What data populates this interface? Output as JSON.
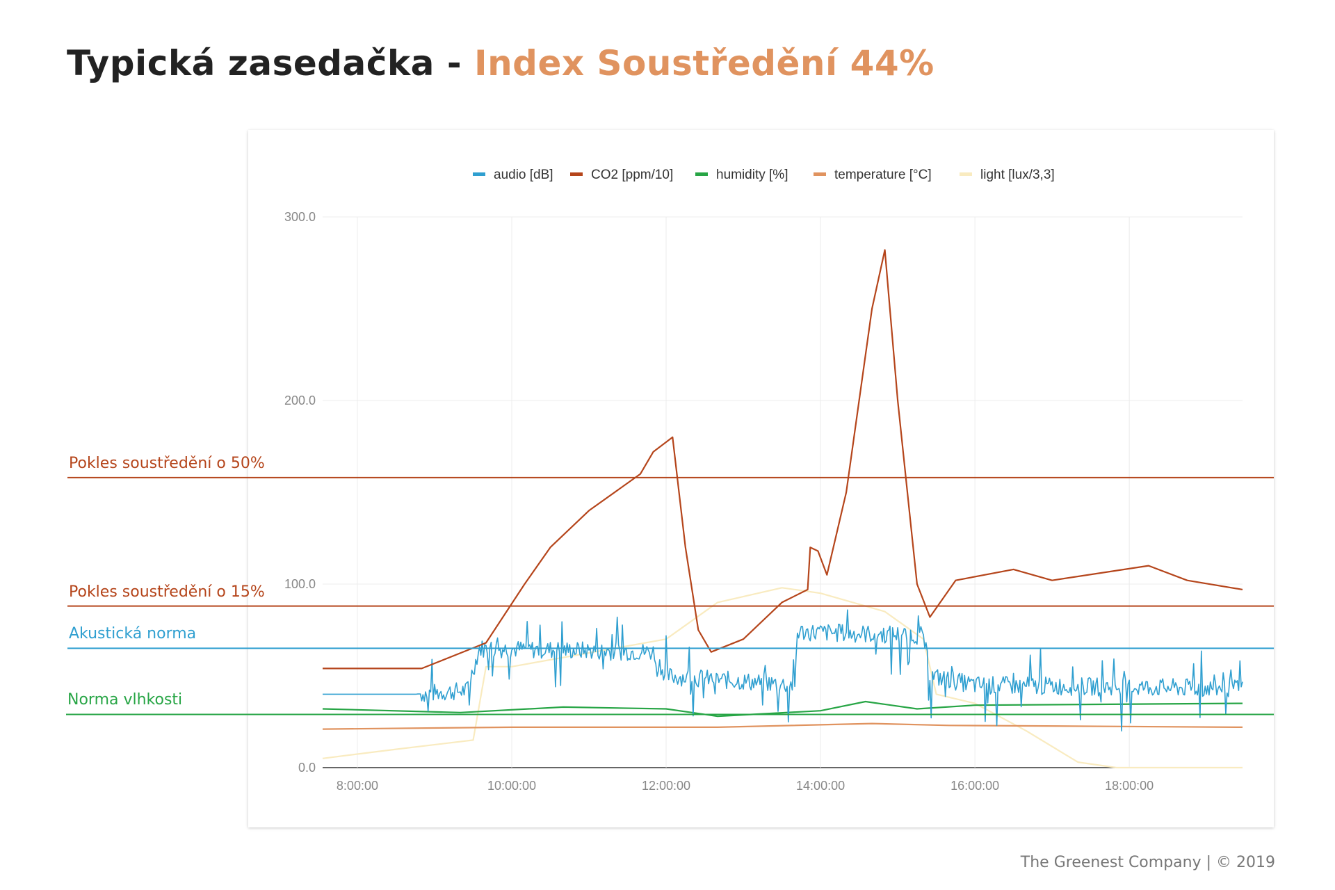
{
  "header": {
    "title_main": "Typická zasedačka - ",
    "title_accent": "Index Soustředění 44%"
  },
  "footer": {
    "text": "The Greenest Company | © 2019"
  },
  "thresholds": [
    {
      "label": "Pokles soustředění o 50%",
      "value": 158,
      "color": "#b5451b"
    },
    {
      "label": "Pokles soustředění o 15%",
      "value": 88,
      "color": "#b5451b"
    },
    {
      "label": "Akustická norma",
      "value": 65,
      "color": "#2f9fd0"
    },
    {
      "label": "Norma vlhkosti",
      "value": 29,
      "color": "#27a545"
    }
  ],
  "chart_data": {
    "type": "line",
    "ylim": [
      0,
      300
    ],
    "xlim": [
      "7:33:00",
      "19:28:00"
    ],
    "yticks": [
      "0.0",
      "100.0",
      "200.0",
      "300.0"
    ],
    "xticks": [
      "8:00:00",
      "10:00:00",
      "12:00:00",
      "14:00:00",
      "16:00:00",
      "18:00:00"
    ],
    "legend_position": "top",
    "grid": true,
    "series": [
      {
        "name": "audio [dB]",
        "color": "#2f9fd0",
        "noisy": true,
        "points": [
          [
            "7:33:00",
            40
          ],
          [
            "8:45:00",
            40
          ],
          [
            "9:25:00",
            42
          ],
          [
            "9:35:00",
            65
          ],
          [
            "11:50:00",
            63
          ],
          [
            "12:00:00",
            50
          ],
          [
            "13:40:00",
            45
          ],
          [
            "13:42:00",
            74
          ],
          [
            "15:20:00",
            72
          ],
          [
            "15:25:00",
            50
          ],
          [
            "16:00:00",
            45
          ],
          [
            "19:28:00",
            43
          ]
        ]
      },
      {
        "name": "CO2 [ppm/10]",
        "color": "#b5451b",
        "points": [
          [
            "7:33:00",
            54
          ],
          [
            "8:50:00",
            54
          ],
          [
            "9:40:00",
            68
          ],
          [
            "10:10:00",
            100
          ],
          [
            "10:30:00",
            120
          ],
          [
            "11:00:00",
            140
          ],
          [
            "11:40:00",
            160
          ],
          [
            "11:50:00",
            172
          ],
          [
            "12:05:00",
            180
          ],
          [
            "12:15:00",
            120
          ],
          [
            "12:25:00",
            75
          ],
          [
            "12:35:00",
            63
          ],
          [
            "13:00:00",
            70
          ],
          [
            "13:30:00",
            90
          ],
          [
            "13:50:00",
            97
          ],
          [
            "13:52:00",
            120
          ],
          [
            "13:58:00",
            118
          ],
          [
            "14:05:00",
            105
          ],
          [
            "14:20:00",
            150
          ],
          [
            "14:40:00",
            250
          ],
          [
            "14:50:00",
            282
          ],
          [
            "15:00:00",
            200
          ],
          [
            "15:15:00",
            100
          ],
          [
            "15:25:00",
            82
          ],
          [
            "15:45:00",
            102
          ],
          [
            "16:30:00",
            108
          ],
          [
            "17:00:00",
            102
          ],
          [
            "18:15:00",
            110
          ],
          [
            "18:45:00",
            102
          ],
          [
            "19:28:00",
            97
          ]
        ]
      },
      {
        "name": "humidity [%]",
        "color": "#27a545",
        "points": [
          [
            "7:33:00",
            32
          ],
          [
            "9:20:00",
            30
          ],
          [
            "10:40:00",
            33
          ],
          [
            "12:00:00",
            32
          ],
          [
            "12:40:00",
            28
          ],
          [
            "14:00:00",
            31
          ],
          [
            "14:35:00",
            36
          ],
          [
            "15:15:00",
            32
          ],
          [
            "16:00:00",
            34
          ],
          [
            "19:28:00",
            35
          ]
        ]
      },
      {
        "name": "temperature [°C]",
        "color": "#e0935f",
        "points": [
          [
            "7:33:00",
            21
          ],
          [
            "10:00:00",
            22
          ],
          [
            "12:40:00",
            22
          ],
          [
            "14:40:00",
            24
          ],
          [
            "15:40:00",
            23
          ],
          [
            "19:28:00",
            22
          ]
        ]
      },
      {
        "name": "light [lux/3,3]",
        "color": "#f9ebc0",
        "points": [
          [
            "7:33:00",
            5
          ],
          [
            "8:30:00",
            10
          ],
          [
            "9:30:00",
            15
          ],
          [
            "9:40:00",
            55
          ],
          [
            "10:00:00",
            55
          ],
          [
            "12:00:00",
            70
          ],
          [
            "12:40:00",
            90
          ],
          [
            "13:30:00",
            98
          ],
          [
            "14:00:00",
            95
          ],
          [
            "14:50:00",
            85
          ],
          [
            "15:20:00",
            70
          ],
          [
            "15:30:00",
            40
          ],
          [
            "16:00:00",
            35
          ],
          [
            "16:40:00",
            20
          ],
          [
            "17:20:00",
            3
          ],
          [
            "17:50:00",
            0
          ],
          [
            "19:28:00",
            0
          ]
        ]
      }
    ]
  }
}
